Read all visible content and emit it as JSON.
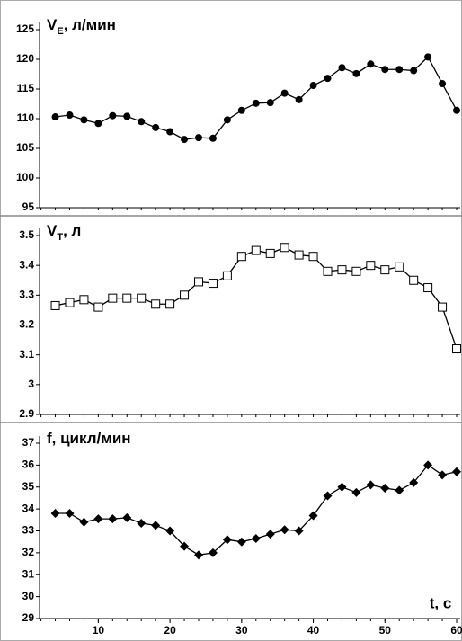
{
  "chart_data": [
    {
      "type": "line",
      "marker": "circle",
      "color": "#000000",
      "title": "V",
      "title_sub": "E",
      "title_rest": ", л/мин",
      "x": [
        4,
        6,
        8,
        10,
        12,
        14,
        16,
        18,
        20,
        22,
        24,
        26,
        28,
        30,
        32,
        34,
        36,
        38,
        40,
        42,
        44,
        46,
        48,
        50,
        52,
        54,
        56,
        58,
        60
      ],
      "values": [
        110.3,
        110.6,
        109.8,
        109.2,
        110.5,
        110.4,
        109.5,
        108.5,
        107.8,
        106.5,
        106.8,
        106.7,
        109.8,
        111.4,
        112.6,
        112.7,
        114.3,
        113.2,
        115.6,
        116.8,
        118.6,
        117.6,
        119.2,
        118.3,
        118.3,
        118.1,
        120.4,
        115.9,
        111.4
      ],
      "xlim": [
        1.8,
        60.5
      ],
      "ylim": [
        95,
        125
      ],
      "yticks": [
        95,
        100,
        105,
        110,
        115,
        120,
        125
      ]
    },
    {
      "type": "line",
      "marker": "square",
      "color": "#000000",
      "title": "V",
      "title_sub": "T",
      "title_rest": ", л",
      "x": [
        4,
        6,
        8,
        10,
        12,
        14,
        16,
        18,
        20,
        22,
        24,
        26,
        28,
        30,
        32,
        34,
        36,
        38,
        40,
        42,
        44,
        46,
        48,
        50,
        52,
        54,
        56,
        58,
        60
      ],
      "values": [
        3.265,
        3.275,
        3.285,
        3.26,
        3.29,
        3.29,
        3.29,
        3.27,
        3.27,
        3.3,
        3.345,
        3.34,
        3.365,
        3.43,
        3.45,
        3.44,
        3.46,
        3.435,
        3.43,
        3.38,
        3.385,
        3.38,
        3.4,
        3.385,
        3.395,
        3.35,
        3.325,
        3.26,
        3.12
      ],
      "xlim": [
        1.8,
        60.5
      ],
      "ylim": [
        2.9,
        3.5
      ],
      "yticks": [
        2.9,
        3,
        3.1,
        3.2,
        3.3,
        3.4,
        3.5
      ]
    },
    {
      "type": "line",
      "marker": "diamond",
      "color": "#000000",
      "title": "f, цикл/мин",
      "xlabel": "t, c",
      "x": [
        4,
        6,
        8,
        10,
        12,
        14,
        16,
        18,
        20,
        22,
        24,
        26,
        28,
        30,
        32,
        34,
        36,
        38,
        40,
        42,
        44,
        46,
        48,
        50,
        52,
        54,
        56,
        58,
        60
      ],
      "values": [
        33.8,
        33.8,
        33.4,
        33.55,
        33.55,
        33.6,
        33.35,
        33.25,
        33.0,
        32.3,
        31.9,
        32.0,
        32.6,
        32.5,
        32.65,
        32.85,
        33.05,
        33.0,
        33.7,
        34.6,
        35.0,
        34.75,
        35.1,
        34.95,
        34.85,
        35.2,
        36.0,
        35.55,
        35.7
      ],
      "xlim": [
        1.8,
        60.5
      ],
      "ylim": [
        29,
        37
      ],
      "yticks": [
        29,
        30,
        31,
        32,
        33,
        34,
        35,
        36,
        37
      ],
      "xticks": [
        10,
        20,
        30,
        40,
        50,
        60
      ]
    }
  ]
}
